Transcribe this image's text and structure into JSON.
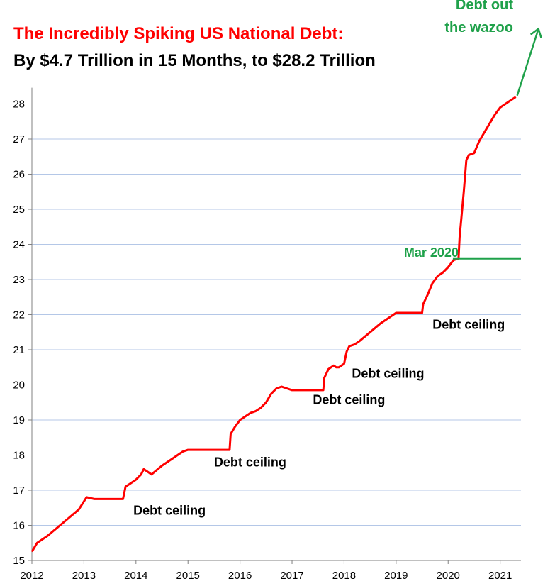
{
  "colors": {
    "title_main": "#ff0000",
    "title_sub": "#000000",
    "series": "#ff0000",
    "annotation_green": "#1fa14a",
    "grid": "#b4c7e7",
    "axis": "#808080"
  },
  "chart_data": {
    "type": "line",
    "title": "The Incredibly Spiking US National Debt:",
    "subtitle": "By $4.7 Trillion in 15 Months, to $28.2 Trillion",
    "xlabel": "",
    "ylabel": "",
    "xlim": [
      2012,
      2021.4
    ],
    "ylim": [
      15,
      28.3
    ],
    "x_ticks": [
      "2012",
      "2013",
      "2014",
      "2015",
      "2016",
      "2017",
      "2018",
      "2019",
      "2020",
      "2021"
    ],
    "y_ticks": [
      "15",
      "16",
      "17",
      "18",
      "19",
      "20",
      "21",
      "22",
      "23",
      "24",
      "25",
      "26",
      "27",
      "28"
    ],
    "grid": "horizontal",
    "legend": "none",
    "series": [
      {
        "name": "",
        "color": "#ff0000",
        "x": [
          2012.0,
          2012.1,
          2012.3,
          2012.5,
          2012.7,
          2012.9,
          2013.05,
          2013.2,
          2013.25,
          2013.75,
          2013.8,
          2013.9,
          2014.0,
          2014.1,
          2014.15,
          2014.25,
          2014.3,
          2014.5,
          2014.7,
          2014.9,
          2015.0,
          2015.05,
          2015.8,
          2015.82,
          2015.9,
          2016.0,
          2016.1,
          2016.2,
          2016.3,
          2016.4,
          2016.5,
          2016.6,
          2016.7,
          2016.8,
          2016.9,
          2017.0,
          2017.05,
          2017.1,
          2017.6,
          2017.62,
          2017.7,
          2017.8,
          2017.85,
          2017.9,
          2018.0,
          2018.05,
          2018.1,
          2018.2,
          2018.3,
          2018.5,
          2018.7,
          2018.9,
          2019.0,
          2019.05,
          2019.1,
          2019.5,
          2019.52,
          2019.6,
          2019.7,
          2019.8,
          2019.9,
          2020.0,
          2020.1,
          2020.2,
          2020.22,
          2020.3,
          2020.35,
          2020.4,
          2020.5,
          2020.6,
          2020.7,
          2020.8,
          2020.9,
          2021.0,
          2021.1,
          2021.2,
          2021.3
        ],
        "y": [
          15.25,
          15.5,
          15.7,
          15.95,
          16.2,
          16.45,
          16.8,
          16.75,
          16.75,
          16.75,
          17.1,
          17.2,
          17.3,
          17.45,
          17.6,
          17.5,
          17.45,
          17.7,
          17.9,
          18.1,
          18.15,
          18.15,
          18.15,
          18.6,
          18.8,
          19.0,
          19.1,
          19.2,
          19.25,
          19.35,
          19.5,
          19.75,
          19.9,
          19.95,
          19.9,
          19.85,
          19.85,
          19.85,
          19.85,
          20.2,
          20.45,
          20.55,
          20.5,
          20.5,
          20.6,
          20.95,
          21.1,
          21.15,
          21.25,
          21.5,
          21.75,
          21.95,
          22.05,
          22.05,
          22.05,
          22.05,
          22.3,
          22.55,
          22.9,
          23.1,
          23.2,
          23.35,
          23.55,
          23.6,
          24.2,
          25.5,
          26.4,
          26.55,
          26.6,
          26.95,
          27.2,
          27.45,
          27.7,
          27.9,
          28.0,
          28.1,
          28.2
        ]
      }
    ],
    "annotations": [
      {
        "text": "Debt ceiling",
        "x": 2013.95,
        "y": 16.3
      },
      {
        "text": "Debt ceiling",
        "x": 2015.5,
        "y": 17.68
      },
      {
        "text": "Debt ceiling",
        "x": 2017.4,
        "y": 19.45
      },
      {
        "text": "Debt ceiling",
        "x": 2018.15,
        "y": 20.2
      },
      {
        "text": "Debt ceiling",
        "x": 2019.7,
        "y": 21.6
      },
      {
        "text": "Mar 2020",
        "x": 2019.15,
        "y": 23.65
      },
      {
        "text": "Debt out",
        "x": 2021.25,
        "y": 30.7
      },
      {
        "text": "the wazoo",
        "x": 2021.25,
        "y": 30.05
      }
    ],
    "mar_2020_line": {
      "x_start": 2020.2,
      "x_end": 2021.4,
      "y": 23.6
    }
  }
}
